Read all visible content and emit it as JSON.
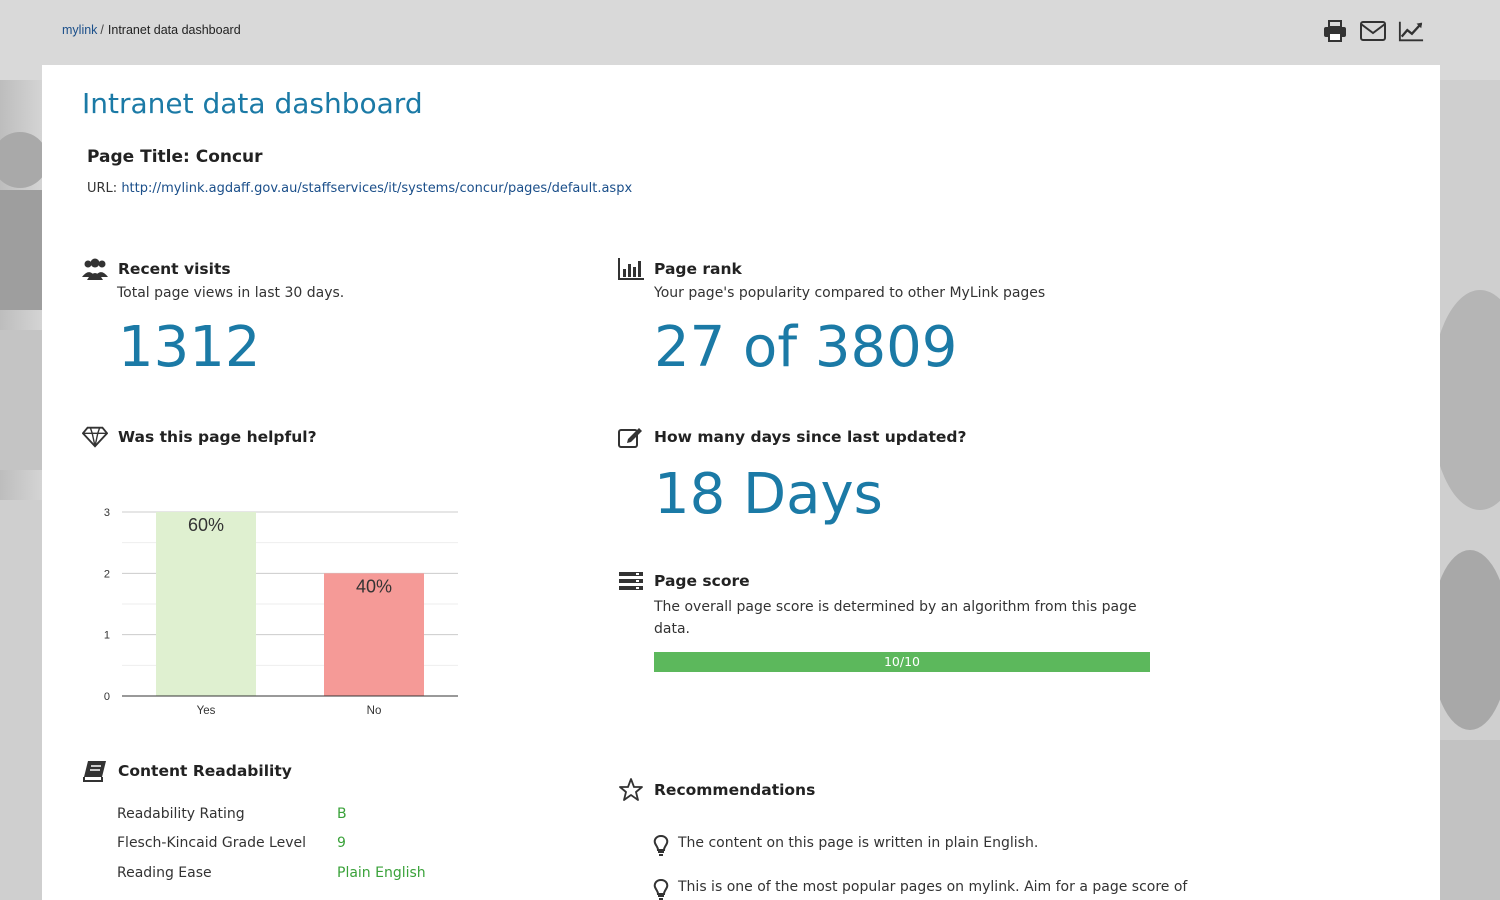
{
  "breadcrumb": {
    "home": "mylink",
    "separator": "/",
    "current": "Intranet data dashboard"
  },
  "tools": {
    "icons": [
      "print-icon",
      "mail-icon",
      "chart-line-icon"
    ]
  },
  "header": {
    "title": "Intranet data dashboard",
    "page_title": "Page Title: Concur",
    "url_label": "URL:",
    "url": "http://mylink.agdaff.gov.au/staffservices/it/systems/concur/pages/default.aspx"
  },
  "recent_visits": {
    "title": "Recent visits",
    "subtitle": "Total page views in last 30 days.",
    "value": "1312"
  },
  "page_rank": {
    "title": "Page rank",
    "subtitle": "Your page's popularity compared to other MyLink pages",
    "value": "27 of 3809"
  },
  "helpful": {
    "title": "Was this page helpful?"
  },
  "days_since": {
    "title": "How many days since last updated?",
    "value": "18 Days"
  },
  "page_score": {
    "title": "Page score",
    "subtitle_1": "The overall page score is determined by an algorithm from this page",
    "subtitle_2": "data.",
    "label": "10/10",
    "fraction": 1.0
  },
  "readability": {
    "title": "Content Readability",
    "rows": [
      {
        "label": "Readability Rating",
        "value": "B"
      },
      {
        "label": "Flesch-Kincaid Grade Level",
        "value": "9"
      },
      {
        "label": "Reading Ease",
        "value": "Plain English"
      }
    ]
  },
  "recommendations": {
    "title": "Recommendations",
    "items": [
      "The content on this page is written in plain English.",
      "This is one of the most popular pages on mylink. Aim for a page score of"
    ]
  },
  "colors": {
    "accent": "#1b7aa6",
    "link": "#1b4f8a",
    "good": "#5cb85c",
    "yes_bar": "#dff0d0",
    "no_bar": "#f59a97",
    "green_text": "#3aa23a"
  },
  "chart_data": {
    "type": "bar",
    "categories": [
      "Yes",
      "No"
    ],
    "values": [
      3,
      2
    ],
    "data_labels": [
      "60%",
      "40%"
    ],
    "ylim": [
      0,
      3
    ],
    "yticks": [
      "0",
      "1",
      "2",
      "3"
    ],
    "xlabel": "",
    "ylabel": "",
    "colors": [
      "#dff0d0",
      "#f59a97"
    ],
    "grid": true
  }
}
